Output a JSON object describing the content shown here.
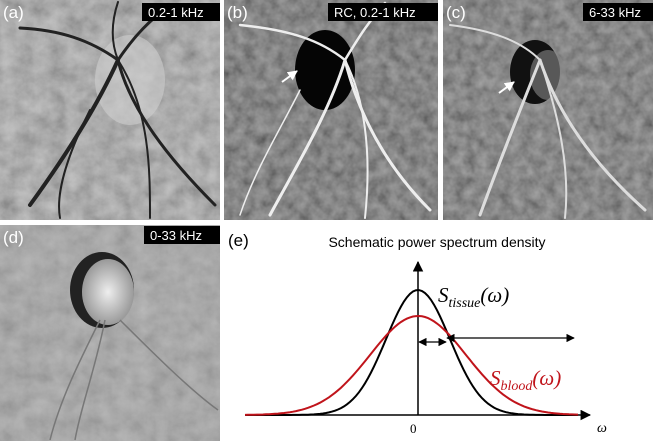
{
  "panels": [
    {
      "label": "(a)",
      "badge": "0.2-1 kHz"
    },
    {
      "label": "(b)",
      "badge": "RC, 0.2-1 kHz"
    },
    {
      "label": "(c)",
      "badge": "6-33 kHz"
    },
    {
      "label": "(d)",
      "badge": "0-33 kHz"
    }
  ],
  "schematic": {
    "label": "(e)",
    "title": "Schematic power spectrum density",
    "tissue": {
      "symbol": "S",
      "subscript": "tissue",
      "argument": "(ω)"
    },
    "blood": {
      "symbol": "S",
      "subscript": "blood",
      "argument": "(ω)"
    },
    "origin": "0",
    "axis_label": "ω"
  }
}
